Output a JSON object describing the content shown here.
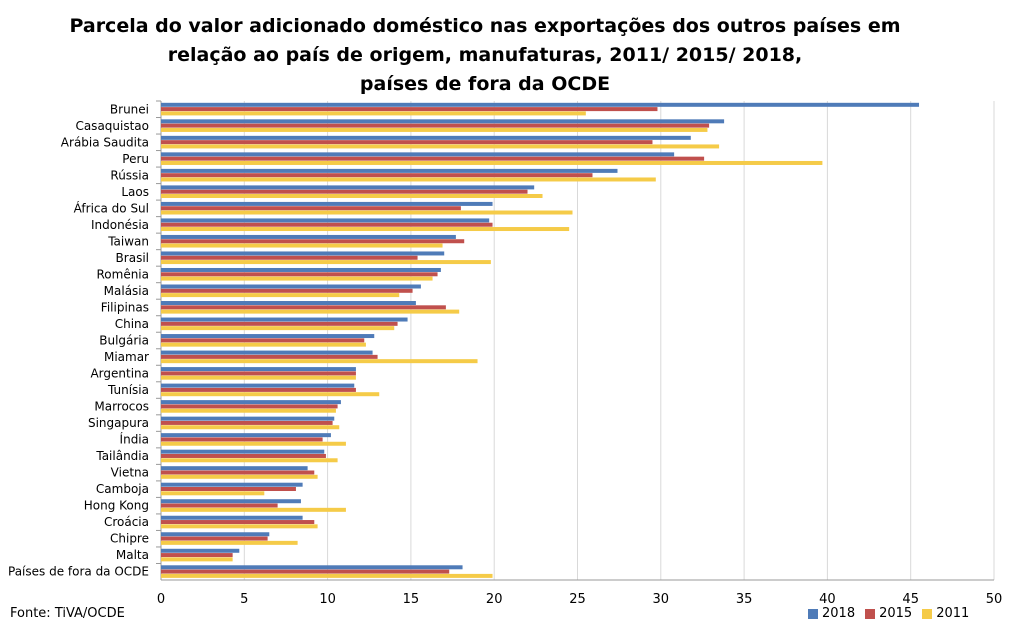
{
  "title_lines": [
    "Parcela do valor adicionado doméstico nas exportações dos outros países em",
    "relação ao país de origem, manufaturas, 2011/ 2015/ 2018,",
    "países de fora da OCDE"
  ],
  "source": "Fonte: TiVA/OCDE",
  "colors": {
    "2018": "#4f7bb8",
    "2015": "#c0504d",
    "2011": "#f5cb48"
  },
  "chart_data": {
    "type": "bar",
    "orientation": "horizontal",
    "title": "Parcela do valor adicionado doméstico nas exportações dos outros países em relação ao país de origem, manufaturas, 2011/ 2015/ 2018, países de fora da OCDE",
    "xlim": [
      0,
      50
    ],
    "xticks": [
      0,
      5,
      10,
      15,
      20,
      25,
      30,
      35,
      40,
      45,
      50
    ],
    "grid": "vertical",
    "legend_position": "bottom-right",
    "categories": [
      "Brunei",
      "Casaquistao",
      "Arábia Saudita",
      "Peru",
      "Rússia",
      "Laos",
      "África do Sul",
      "Indonésia",
      "Taiwan",
      "Brasil",
      "Romênia",
      "Malásia",
      "Filipinas",
      "China",
      "Bulgária",
      "Miamar",
      "Argentina",
      "Tunísia",
      "Marrocos",
      "Singapura",
      "Índia",
      "Tailândia",
      "Vietna",
      "Camboja",
      "Hong Kong",
      "Croácia",
      "Chipre",
      "Malta",
      "Países de fora da OCDE"
    ],
    "series": [
      {
        "name": "2018",
        "values": [
          45.5,
          33.8,
          31.8,
          30.8,
          27.4,
          22.4,
          19.9,
          19.7,
          17.7,
          17.0,
          16.8,
          15.6,
          15.3,
          14.8,
          12.8,
          12.7,
          11.7,
          11.6,
          10.8,
          10.4,
          10.2,
          9.8,
          8.8,
          8.5,
          8.4,
          8.5,
          6.5,
          4.7,
          18.1
        ]
      },
      {
        "name": "2015",
        "values": [
          29.8,
          32.9,
          29.5,
          32.6,
          25.9,
          22.0,
          18.0,
          19.9,
          18.2,
          15.4,
          16.6,
          15.1,
          17.1,
          14.2,
          12.2,
          13.0,
          11.7,
          11.7,
          10.6,
          10.3,
          9.7,
          9.9,
          9.2,
          8.1,
          7.0,
          9.2,
          6.4,
          4.3,
          17.3
        ]
      },
      {
        "name": "2011",
        "values": [
          25.5,
          32.8,
          33.5,
          39.7,
          29.7,
          22.9,
          24.7,
          24.5,
          16.9,
          19.8,
          16.3,
          14.3,
          17.9,
          14.0,
          12.3,
          19.0,
          11.7,
          13.1,
          10.5,
          10.7,
          11.1,
          10.6,
          9.4,
          6.2,
          11.1,
          9.4,
          8.2,
          4.3,
          19.9
        ]
      }
    ]
  }
}
